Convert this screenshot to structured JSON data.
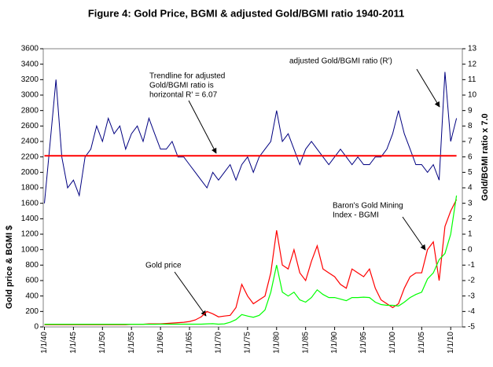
{
  "chart_data": {
    "type": "line",
    "title": "Figure 4: Gold Price,  BGMI  & adjusted Gold/BGMI ratio   1940-2011",
    "ylabel": "Gold price  &  BGMI   $",
    "y2label": "Gold/BGMI ratio x 7.0",
    "xlim": [
      1939.8,
      2012
    ],
    "xticks": [
      {
        "value": 1940,
        "label": "1/1/40"
      },
      {
        "value": 1945,
        "label": "1/1/45"
      },
      {
        "value": 1950,
        "label": "1/1/50"
      },
      {
        "value": 1955,
        "label": "1/1/55"
      },
      {
        "value": 1960,
        "label": "1/1/60"
      },
      {
        "value": 1965,
        "label": "1/1/65"
      },
      {
        "value": 1970,
        "label": "1/1/70"
      },
      {
        "value": 1975,
        "label": "1/1/75"
      },
      {
        "value": 1980,
        "label": "1/1/80"
      },
      {
        "value": 1985,
        "label": "1/1/85"
      },
      {
        "value": 1990,
        "label": "1/1/90"
      },
      {
        "value": 1995,
        "label": "1/1/95"
      },
      {
        "value": 2000,
        "label": "1/1/00"
      },
      {
        "value": 2005,
        "label": "1/1/05"
      },
      {
        "value": 2010,
        "label": "1/1/10"
      }
    ],
    "ylim": [
      0,
      3600
    ],
    "yticks": [
      0,
      200,
      400,
      600,
      800,
      1000,
      1200,
      1400,
      1600,
      1800,
      2000,
      2200,
      2400,
      2600,
      2800,
      3000,
      3200,
      3400,
      3600
    ],
    "y2lim": [
      -5,
      13
    ],
    "y2ticks": [
      -5,
      -4,
      -3,
      -2,
      -1,
      0,
      1,
      2,
      3,
      4,
      5,
      6,
      7,
      8,
      9,
      10,
      11,
      12,
      13
    ],
    "x": [
      1940,
      1941,
      1942,
      1943,
      1944,
      1945,
      1946,
      1947,
      1948,
      1949,
      1950,
      1951,
      1952,
      1953,
      1954,
      1955,
      1956,
      1957,
      1958,
      1959,
      1960,
      1961,
      1962,
      1963,
      1964,
      1965,
      1966,
      1967,
      1968,
      1969,
      1970,
      1971,
      1972,
      1973,
      1974,
      1975,
      1976,
      1977,
      1978,
      1979,
      1980,
      1981,
      1982,
      1983,
      1984,
      1985,
      1986,
      1987,
      1988,
      1989,
      1990,
      1991,
      1992,
      1993,
      1994,
      1995,
      1996,
      1997,
      1998,
      1999,
      2000,
      2001,
      2002,
      2003,
      2004,
      2005,
      2006,
      2007,
      2008,
      2009,
      2010,
      2011
    ],
    "series": [
      {
        "color": "#ff0000",
        "values": [
          30,
          30,
          30,
          30,
          30,
          30,
          30,
          30,
          30,
          30,
          30,
          30,
          30,
          30,
          30,
          35,
          35,
          35,
          40,
          40,
          40,
          45,
          50,
          55,
          60,
          70,
          90,
          130,
          200,
          170,
          130,
          140,
          150,
          250,
          550,
          400,
          300,
          350,
          400,
          700,
          1250,
          800,
          750,
          1000,
          700,
          600,
          850,
          1050,
          750,
          700,
          650,
          550,
          500,
          750,
          700,
          650,
          750,
          500,
          350,
          300,
          250,
          300,
          500,
          650,
          700,
          700,
          1000,
          1100,
          600,
          1300,
          1500,
          1650
        ]
      },
      {
        "color": "#00ff00",
        "values": [
          35,
          35,
          35,
          35,
          35,
          35,
          35,
          35,
          35,
          35,
          35,
          35,
          35,
          35,
          35,
          35,
          35,
          35,
          35,
          35,
          36,
          36,
          36,
          36,
          36,
          36,
          36,
          36,
          40,
          42,
          36,
          40,
          60,
          95,
          160,
          140,
          125,
          150,
          220,
          450,
          800,
          450,
          400,
          450,
          350,
          320,
          380,
          480,
          420,
          380,
          380,
          360,
          340,
          380,
          380,
          385,
          380,
          320,
          290,
          280,
          280,
          270,
          320,
          380,
          420,
          450,
          620,
          700,
          870,
          950,
          1200,
          1700
        ]
      },
      {
        "color": "#000080",
        "axis": "y2",
        "values": [
          3,
          7,
          11,
          6,
          4,
          4.5,
          3.5,
          6,
          6.5,
          8,
          7,
          8.5,
          7.5,
          8,
          6.5,
          7.5,
          8,
          7,
          8.5,
          7.5,
          6.5,
          6.5,
          7,
          6,
          6,
          5.5,
          5,
          4.5,
          4,
          5,
          4.5,
          5,
          5.5,
          4.5,
          5.5,
          6,
          5,
          6,
          6.5,
          7,
          9,
          7,
          7.5,
          6.5,
          5.5,
          6.5,
          7,
          6.5,
          6,
          5.5,
          6,
          6.5,
          6,
          5.5,
          6,
          5.5,
          5.5,
          6,
          6,
          6.5,
          7.5,
          9,
          7.5,
          6.5,
          5.5,
          5.5,
          5,
          5.5,
          4.5,
          11.5,
          7,
          8.5
        ]
      }
    ],
    "trendline": {
      "color": "#ff0000",
      "axis": "y2",
      "x": [
        1940,
        2011
      ],
      "values": [
        6.07,
        6.07
      ]
    },
    "annotations": [
      {
        "lines": [
          "Trendline for adjusted",
          "Gold/BGMI ratio is",
          "horizontal   R' = 6.07"
        ]
      },
      {
        "lines": [
          "adjusted Gold/BGMI ratio (R')"
        ]
      },
      {
        "lines": [
          "Baron's Gold Mining",
          "Index - BGMI"
        ]
      },
      {
        "lines": [
          "Gold price"
        ]
      }
    ]
  }
}
